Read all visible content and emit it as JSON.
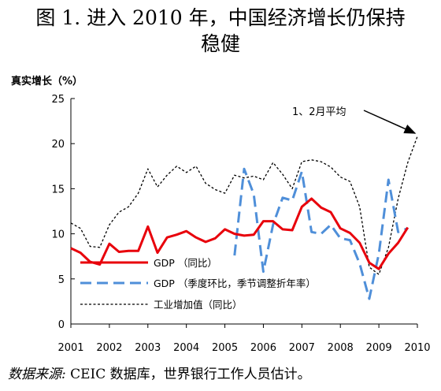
{
  "figure": {
    "title_line1": "图 1. 进入 2010 年，中国经济增长仍保持",
    "title_line2": "稳健",
    "source_label": "数据来源:",
    "source_text": " CEIC 数据库，世界银行工作人员估计。"
  },
  "chart_data": {
    "type": "line",
    "ylabel": "真实增长（%）",
    "ylim": [
      0,
      25
    ],
    "yticks": [
      0,
      5,
      10,
      15,
      20,
      25
    ],
    "xlim": [
      2001,
      2010
    ],
    "xticks": [
      2001,
      2002,
      2003,
      2004,
      2005,
      2006,
      2007,
      2008,
      2009,
      2010
    ],
    "grid": false,
    "legend_position": "lower-left",
    "annotation": {
      "text": "1、2月平均",
      "x": 2010,
      "y": 20.8
    },
    "series": [
      {
        "name": "GDP （同比）",
        "color": "#e8000b",
        "style": "solid",
        "points": [
          [
            2001.0,
            8.4
          ],
          [
            2001.25,
            7.9
          ],
          [
            2001.5,
            6.9
          ],
          [
            2001.75,
            6.6
          ],
          [
            2002.0,
            8.9
          ],
          [
            2002.25,
            8.0
          ],
          [
            2002.5,
            8.1
          ],
          [
            2002.75,
            8.1
          ],
          [
            2003.0,
            10.8
          ],
          [
            2003.25,
            7.9
          ],
          [
            2003.5,
            9.6
          ],
          [
            2003.75,
            9.9
          ],
          [
            2004.0,
            10.3
          ],
          [
            2004.25,
            9.6
          ],
          [
            2004.5,
            9.1
          ],
          [
            2004.75,
            9.5
          ],
          [
            2005.0,
            10.5
          ],
          [
            2005.25,
            10.0
          ],
          [
            2005.5,
            9.8
          ],
          [
            2005.75,
            9.9
          ],
          [
            2006.0,
            11.4
          ],
          [
            2006.25,
            11.4
          ],
          [
            2006.5,
            10.5
          ],
          [
            2006.75,
            10.4
          ],
          [
            2007.0,
            13.0
          ],
          [
            2007.25,
            13.9
          ],
          [
            2007.5,
            12.9
          ],
          [
            2007.75,
            12.4
          ],
          [
            2008.0,
            10.6
          ],
          [
            2008.25,
            10.1
          ],
          [
            2008.5,
            9.0
          ],
          [
            2008.75,
            6.8
          ],
          [
            2009.0,
            6.1
          ],
          [
            2009.25,
            7.8
          ],
          [
            2009.5,
            9.0
          ],
          [
            2009.75,
            10.7
          ]
        ]
      },
      {
        "name": "GDP （季度环比，季节调整折年率）",
        "color": "#4f8fd9",
        "style": "dashed",
        "points": [
          [
            2005.25,
            7.6
          ],
          [
            2005.5,
            17.2
          ],
          [
            2005.75,
            14.4
          ],
          [
            2006.0,
            5.8
          ],
          [
            2006.25,
            11.0
          ],
          [
            2006.5,
            14.0
          ],
          [
            2006.75,
            13.7
          ],
          [
            2007.0,
            16.9
          ],
          [
            2007.25,
            10.2
          ],
          [
            2007.5,
            10.0
          ],
          [
            2007.75,
            11.0
          ],
          [
            2008.0,
            9.5
          ],
          [
            2008.25,
            9.3
          ],
          [
            2008.5,
            6.7
          ],
          [
            2008.75,
            2.8
          ],
          [
            2009.0,
            7.8
          ],
          [
            2009.25,
            16.0
          ],
          [
            2009.5,
            10.2
          ],
          [
            2009.75,
            10.6
          ]
        ]
      },
      {
        "name": "工业增加值（同比）",
        "color": "#000000",
        "style": "dotted",
        "points": [
          [
            2001.0,
            11.2
          ],
          [
            2001.25,
            10.6
          ],
          [
            2001.5,
            8.6
          ],
          [
            2001.75,
            8.5
          ],
          [
            2002.0,
            11.0
          ],
          [
            2002.25,
            12.4
          ],
          [
            2002.5,
            13.0
          ],
          [
            2002.75,
            14.5
          ],
          [
            2003.0,
            17.2
          ],
          [
            2003.25,
            15.2
          ],
          [
            2003.5,
            16.5
          ],
          [
            2003.75,
            17.5
          ],
          [
            2004.0,
            16.8
          ],
          [
            2004.25,
            17.5
          ],
          [
            2004.5,
            15.6
          ],
          [
            2004.75,
            14.9
          ],
          [
            2005.0,
            14.5
          ],
          [
            2005.25,
            16.5
          ],
          [
            2005.5,
            16.2
          ],
          [
            2005.75,
            16.4
          ],
          [
            2006.0,
            16.0
          ],
          [
            2006.25,
            17.9
          ],
          [
            2006.5,
            16.6
          ],
          [
            2006.75,
            15.0
          ],
          [
            2007.0,
            18.0
          ],
          [
            2007.25,
            18.2
          ],
          [
            2007.5,
            18.0
          ],
          [
            2007.75,
            17.4
          ],
          [
            2008.0,
            16.3
          ],
          [
            2008.25,
            15.8
          ],
          [
            2008.5,
            13.0
          ],
          [
            2008.75,
            6.3
          ],
          [
            2009.0,
            5.5
          ],
          [
            2009.25,
            8.5
          ],
          [
            2009.5,
            13.9
          ],
          [
            2009.75,
            17.9
          ],
          [
            2010.0,
            20.8
          ]
        ]
      }
    ]
  }
}
